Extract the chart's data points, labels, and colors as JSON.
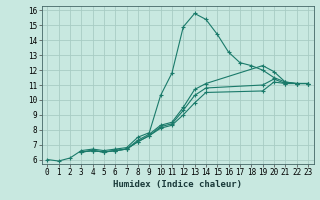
{
  "xlabel": "Humidex (Indice chaleur)",
  "xlim": [
    -0.5,
    23.5
  ],
  "ylim": [
    5.7,
    16.3
  ],
  "xticks": [
    0,
    1,
    2,
    3,
    4,
    5,
    6,
    7,
    8,
    9,
    10,
    11,
    12,
    13,
    14,
    15,
    16,
    17,
    18,
    19,
    20,
    21,
    22,
    23
  ],
  "yticks": [
    6,
    7,
    8,
    9,
    10,
    11,
    12,
    13,
    14,
    15,
    16
  ],
  "bg_color": "#c8e8e0",
  "grid_color": "#a8ccc4",
  "line_color": "#1a7a6a",
  "lines": [
    {
      "x": [
        0,
        1,
        2,
        3,
        4,
        5,
        6,
        7,
        8,
        9,
        10,
        11,
        12,
        13,
        14,
        15,
        16,
        17,
        18,
        19,
        20,
        21,
        22,
        23
      ],
      "y": [
        6.0,
        5.9,
        6.1,
        6.6,
        6.7,
        6.6,
        6.7,
        6.8,
        7.5,
        7.8,
        10.3,
        11.8,
        14.9,
        15.8,
        15.4,
        14.4,
        13.2,
        12.5,
        12.3,
        12.0,
        11.5,
        11.2,
        11.1,
        11.1
      ]
    },
    {
      "x": [
        3,
        4,
        5,
        6,
        7,
        8,
        9,
        10,
        11,
        12,
        13,
        14,
        19,
        20,
        21,
        22,
        23
      ],
      "y": [
        6.5,
        6.6,
        6.5,
        6.6,
        6.7,
        7.3,
        7.7,
        8.3,
        8.5,
        9.5,
        10.7,
        11.1,
        12.3,
        11.9,
        11.2,
        11.1,
        11.1
      ]
    },
    {
      "x": [
        3,
        4,
        5,
        6,
        7,
        8,
        9,
        10,
        11,
        12,
        13,
        14,
        19,
        20,
        21,
        22,
        23
      ],
      "y": [
        6.5,
        6.6,
        6.5,
        6.6,
        6.7,
        7.2,
        7.6,
        8.2,
        8.4,
        9.3,
        10.3,
        10.8,
        11.0,
        11.4,
        11.1,
        11.1,
        11.1
      ]
    },
    {
      "x": [
        3,
        4,
        5,
        6,
        7,
        8,
        9,
        10,
        11,
        12,
        13,
        14,
        19,
        20,
        21,
        22,
        23
      ],
      "y": [
        6.5,
        6.6,
        6.5,
        6.6,
        6.7,
        7.2,
        7.6,
        8.1,
        8.3,
        9.0,
        9.8,
        10.5,
        10.6,
        11.2,
        11.1,
        11.1,
        11.1
      ]
    }
  ],
  "font_family": "monospace",
  "xlabel_fontsize": 6.5,
  "tick_fontsize": 5.5
}
